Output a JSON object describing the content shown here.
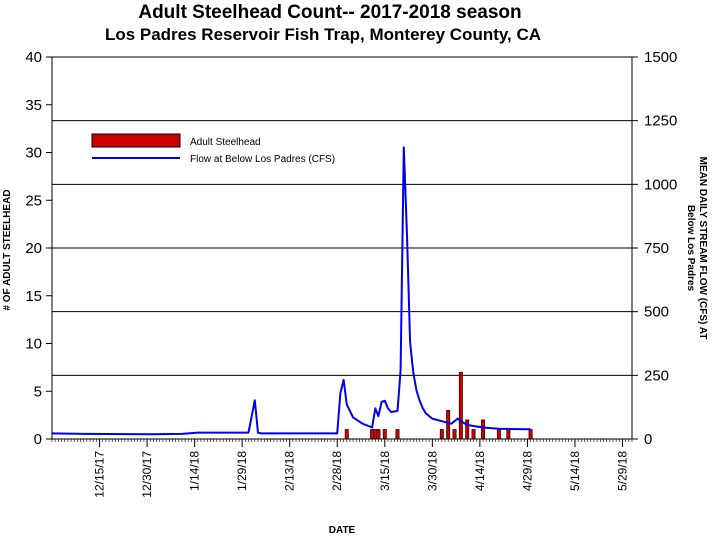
{
  "chart_data": {
    "type": "bar+line",
    "title": "Adult Steelhead Count-- 2017-2018 season",
    "subtitle": "Los Padres Reservoir Fish Trap, Monterey County, CA",
    "xlabel": "DATE",
    "ylabel_left": "# OF ADULT STEELHEAD",
    "ylabel_right_line1": "MEAN DAILY STREAM FLOW (CFS) AT",
    "ylabel_right_line2": "Below Los Padres",
    "x_range": [
      "2017-11-30",
      "2018-06-01"
    ],
    "ylim_left": [
      0,
      40
    ],
    "ylim_right": [
      0,
      1500
    ],
    "yticks_left": [
      "0",
      "5",
      "10",
      "15",
      "20",
      "25",
      "30",
      "35",
      "40"
    ],
    "yticks_right": [
      "0",
      "250",
      "500",
      "750",
      "1000",
      "1250",
      "1500"
    ],
    "xtick_labels": [
      "12/15/17",
      "12/30/17",
      "1/14/18",
      "1/29/18",
      "2/13/18",
      "2/28/18",
      "3/15/18",
      "3/30/18",
      "4/14/18",
      "4/29/18",
      "5/14/18",
      "5/29/18"
    ],
    "grid": "horizontal lines at right-axis ticks",
    "legend": {
      "placement": "top-left",
      "bar_label": "Adult Steelhead",
      "line_label": "Flow at Below Los Padres (CFS)"
    },
    "colors": {
      "bar": "#cc0000",
      "line": "#0000ee"
    },
    "bar_series": {
      "name": "Adult Steelhead",
      "dates": [
        "2018-03-03",
        "2018-03-11",
        "2018-03-12",
        "2018-03-13",
        "2018-03-15",
        "2018-03-19",
        "2018-04-02",
        "2018-04-04",
        "2018-04-06",
        "2018-04-08",
        "2018-04-10",
        "2018-04-12",
        "2018-04-15",
        "2018-04-20",
        "2018-04-23",
        "2018-04-30"
      ],
      "values": [
        1,
        1,
        1,
        1,
        1,
        1,
        1,
        3,
        1,
        7,
        2,
        1,
        2,
        1,
        1,
        1
      ]
    },
    "line_series": {
      "name": "Flow at Below Los Padres (CFS)",
      "dates": [
        "2017-11-30",
        "2017-12-10",
        "2017-12-31",
        "2018-01-10",
        "2018-01-15",
        "2018-01-31",
        "2018-02-02",
        "2018-02-03",
        "2018-02-04",
        "2018-02-07",
        "2018-02-28",
        "2018-03-01",
        "2018-03-02",
        "2018-03-03",
        "2018-03-05",
        "2018-03-08",
        "2018-03-11",
        "2018-03-12",
        "2018-03-13",
        "2018-03-14",
        "2018-03-15",
        "2018-03-16",
        "2018-03-17",
        "2018-03-19",
        "2018-03-20",
        "2018-03-21",
        "2018-03-22",
        "2018-03-23",
        "2018-03-24",
        "2018-03-25",
        "2018-03-26",
        "2018-03-27",
        "2018-03-28",
        "2018-03-30",
        "2018-04-02",
        "2018-04-05",
        "2018-04-07",
        "2018-04-08",
        "2018-04-10",
        "2018-04-15",
        "2018-04-20",
        "2018-04-30"
      ],
      "values": [
        22,
        20,
        19,
        20,
        25,
        25,
        152,
        25,
        22,
        22,
        22,
        180,
        232,
        135,
        85,
        60,
        45,
        120,
        90,
        146,
        150,
        120,
        106,
        110,
        270,
        1145,
        800,
        380,
        260,
        190,
        150,
        120,
        100,
        80,
        70,
        60,
        80,
        70,
        55,
        45,
        40,
        38
      ]
    }
  }
}
